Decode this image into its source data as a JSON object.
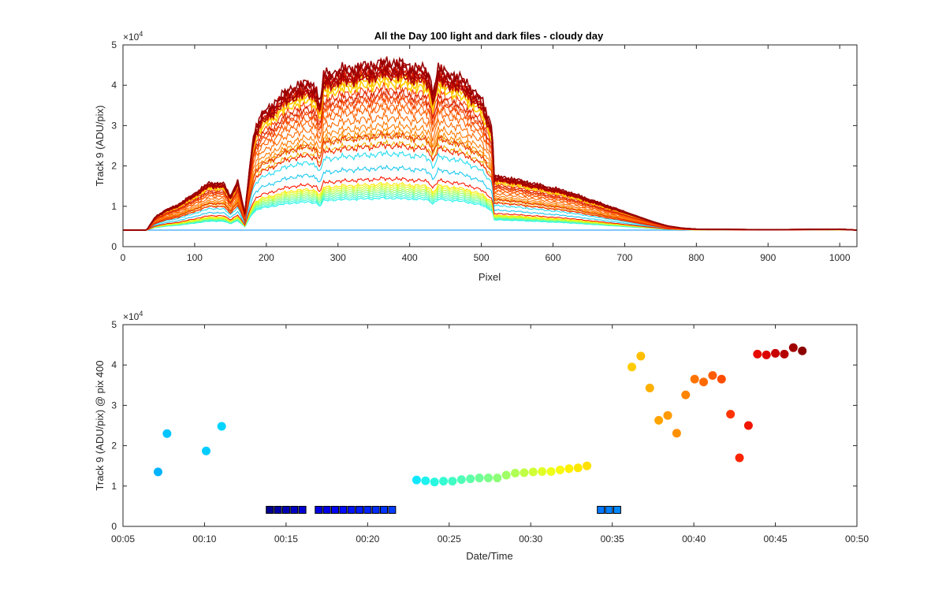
{
  "chart_data": [
    {
      "type": "line",
      "title": "All the Day 100 light and dark files - cloudy day",
      "xlabel": "Pixel",
      "ylabel": "Track 9 (ADU/pix)",
      "xlim": [
        0,
        1024
      ],
      "ylim": [
        0,
        50000
      ],
      "exponent_label": "×10",
      "exponent_power": "4",
      "x_ticks": [
        0,
        100,
        200,
        300,
        400,
        500,
        600,
        700,
        800,
        900,
        1000
      ],
      "x_tick_labels": [
        "0",
        "100",
        "200",
        "300",
        "400",
        "500",
        "600",
        "700",
        "800",
        "900",
        "1000"
      ],
      "y_ticks": [
        0,
        10000,
        20000,
        30000,
        40000,
        50000
      ],
      "y_tick_labels": [
        "0",
        "1",
        "2",
        "3",
        "4",
        "5"
      ],
      "dark_level": 4100,
      "colormap": "jet",
      "spectrum_shape": {
        "x": [
          0,
          33,
          45,
          60,
          80,
          100,
          120,
          140,
          150,
          160,
          170,
          175,
          180,
          185,
          195,
          200,
          220,
          240,
          260,
          270,
          275,
          280,
          300,
          320,
          340,
          360,
          380,
          400,
          420,
          428,
          432,
          440,
          460,
          480,
          500,
          515,
          518,
          540,
          560,
          580,
          600,
          620,
          640,
          660,
          680,
          700,
          720,
          740,
          760,
          780,
          800,
          850,
          900,
          950,
          1000,
          1024
        ],
        "f": [
          0,
          0,
          0.08,
          0.12,
          0.16,
          0.22,
          0.28,
          0.28,
          0.2,
          0.3,
          0.1,
          0.3,
          0.5,
          0.62,
          0.7,
          0.71,
          0.8,
          0.86,
          0.88,
          0.85,
          0.74,
          0.93,
          0.95,
          0.97,
          0.98,
          1.0,
          1.0,
          0.98,
          0.96,
          0.93,
          0.82,
          0.96,
          0.93,
          0.88,
          0.78,
          0.62,
          0.32,
          0.31,
          0.29,
          0.27,
          0.25,
          0.23,
          0.2,
          0.17,
          0.14,
          0.11,
          0.08,
          0.05,
          0.025,
          0.012,
          0.006,
          0.004,
          0.003,
          0.004,
          0.006,
          0.0
        ]
      },
      "series_peak_values": [
        4100,
        4100,
        12000,
        12500,
        13000,
        13500,
        14000,
        14500,
        15000,
        15500,
        19500,
        23000,
        25500,
        27500,
        28500,
        30000,
        32000,
        35000,
        37000,
        39000,
        40500,
        42000,
        43000,
        44500,
        45000,
        16800,
        25000,
        27500,
        34000,
        36500,
        38000,
        42500,
        43500,
        45500
      ],
      "series_colors": [
        "#00b4ff",
        "#0090ff",
        "#1ef2ee",
        "#3ffbd0",
        "#5dffb0",
        "#7dff90",
        "#a0ff60",
        "#c0ff40",
        "#e0ff20",
        "#ffe800",
        "#1ec8f0",
        "#26dcf0",
        "#f0b000",
        "#f59b00",
        "#ff8c00",
        "#ff7a00",
        "#ff6a00",
        "#ff5a00",
        "#ff4a00",
        "#ff3a00",
        "#ffd000",
        "#ffc000",
        "#e02000",
        "#c81000",
        "#b00000",
        "#ff1a00",
        "#f02000",
        "#e63200",
        "#ff6000",
        "#f04000",
        "#d22000",
        "#b40000",
        "#a00000",
        "#940000"
      ]
    },
    {
      "type": "scatter",
      "xlabel": "Date/Time",
      "ylabel": "Track 9 (ADU/pix) @ pix 400",
      "xlim_minutes": [
        5,
        50
      ],
      "ylim": [
        0,
        50000
      ],
      "exponent_label": "×10",
      "exponent_power": "4",
      "x_ticks": [
        5,
        10,
        15,
        20,
        25,
        30,
        35,
        40,
        45,
        50
      ],
      "x_tick_labels": [
        "00:05",
        "00:10",
        "00:15",
        "00:20",
        "00:25",
        "00:30",
        "00:35",
        "00:40",
        "00:45",
        "00:50"
      ],
      "y_ticks": [
        0,
        10000,
        20000,
        30000,
        40000,
        50000
      ],
      "y_tick_labels": [
        "0",
        "1",
        "2",
        "3",
        "4",
        "5"
      ],
      "light_points": [
        {
          "t": 7.15,
          "v": 13500,
          "color": "#00b4ff"
        },
        {
          "t": 7.7,
          "v": 23000,
          "color": "#00c4ff"
        },
        {
          "t": 10.1,
          "v": 18700,
          "color": "#00ccff"
        },
        {
          "t": 11.05,
          "v": 24800,
          "color": "#00d4ff"
        },
        {
          "t": 23.0,
          "v": 11500,
          "color": "#10e8ff"
        },
        {
          "t": 23.55,
          "v": 11300,
          "color": "#1ef2ee"
        },
        {
          "t": 24.1,
          "v": 11000,
          "color": "#28f8e0"
        },
        {
          "t": 24.65,
          "v": 11200,
          "color": "#34fbd2"
        },
        {
          "t": 25.2,
          "v": 11200,
          "color": "#40fcc4"
        },
        {
          "t": 25.75,
          "v": 11600,
          "color": "#4ffdb6"
        },
        {
          "t": 26.3,
          "v": 11800,
          "color": "#5effa8"
        },
        {
          "t": 26.85,
          "v": 12000,
          "color": "#6eff98"
        },
        {
          "t": 27.4,
          "v": 12000,
          "color": "#7eff88"
        },
        {
          "t": 27.95,
          "v": 12000,
          "color": "#8eff78"
        },
        {
          "t": 28.5,
          "v": 12700,
          "color": "#a0ff66"
        },
        {
          "t": 29.05,
          "v": 13200,
          "color": "#b0ff56"
        },
        {
          "t": 29.6,
          "v": 13300,
          "color": "#c0ff46"
        },
        {
          "t": 30.15,
          "v": 13500,
          "color": "#d0ff36"
        },
        {
          "t": 30.7,
          "v": 13600,
          "color": "#e0ff26"
        },
        {
          "t": 31.25,
          "v": 13600,
          "color": "#eeff18"
        },
        {
          "t": 31.8,
          "v": 14000,
          "color": "#f8f810"
        },
        {
          "t": 32.35,
          "v": 14300,
          "color": "#fff000"
        },
        {
          "t": 32.9,
          "v": 14500,
          "color": "#ffe800"
        },
        {
          "t": 33.45,
          "v": 15000,
          "color": "#ffe000"
        },
        {
          "t": 36.2,
          "v": 39500,
          "color": "#ffcc00"
        },
        {
          "t": 36.75,
          "v": 42200,
          "color": "#ffbe00"
        },
        {
          "t": 37.3,
          "v": 34300,
          "color": "#ffb000"
        },
        {
          "t": 37.85,
          "v": 26300,
          "color": "#ffa400"
        },
        {
          "t": 38.4,
          "v": 27500,
          "color": "#ff9a00"
        },
        {
          "t": 38.95,
          "v": 23100,
          "color": "#ff9000"
        },
        {
          "t": 39.5,
          "v": 32600,
          "color": "#ff8400"
        },
        {
          "t": 40.05,
          "v": 36500,
          "color": "#ff7400"
        },
        {
          "t": 40.6,
          "v": 35800,
          "color": "#ff6a00"
        },
        {
          "t": 41.15,
          "v": 37400,
          "color": "#ff5c00"
        },
        {
          "t": 41.7,
          "v": 36500,
          "color": "#ff4c00"
        },
        {
          "t": 42.25,
          "v": 27800,
          "color": "#ff3400"
        },
        {
          "t": 42.8,
          "v": 17000,
          "color": "#ff2400"
        },
        {
          "t": 43.35,
          "v": 25000,
          "color": "#f01600"
        },
        {
          "t": 43.9,
          "v": 42700,
          "color": "#e60a00"
        },
        {
          "t": 44.45,
          "v": 42500,
          "color": "#dc0000"
        },
        {
          "t": 45.0,
          "v": 42900,
          "color": "#c80000"
        },
        {
          "t": 45.55,
          "v": 42700,
          "color": "#b40000"
        },
        {
          "t": 46.1,
          "v": 44300,
          "color": "#a00000"
        },
        {
          "t": 46.65,
          "v": 43500,
          "color": "#8c0000"
        }
      ],
      "dark_points": {
        "value": 4100,
        "edge_color": "#000000",
        "times": [
          14.0,
          14.5,
          15.0,
          15.5,
          16.0,
          17.0,
          17.5,
          18.0,
          18.5,
          19.0,
          19.5,
          20.0,
          20.5,
          21.0,
          21.5,
          34.3,
          34.8,
          35.3
        ],
        "colors": [
          "#000090",
          "#0000a4",
          "#0000b4",
          "#0000c4",
          "#0000d4",
          "#0000e0",
          "#0000ea",
          "#0004f4",
          "#000cff",
          "#0014ff",
          "#001cff",
          "#0024ff",
          "#002cff",
          "#0034ff",
          "#003cff",
          "#0078ff",
          "#0080ff",
          "#0088ff"
        ]
      }
    }
  ]
}
